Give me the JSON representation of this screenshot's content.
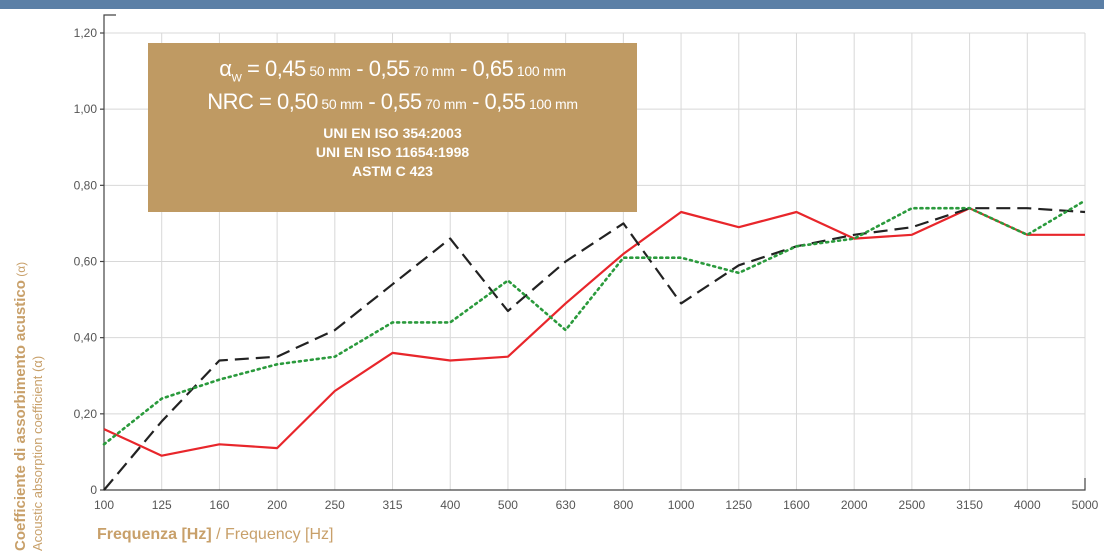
{
  "chart_data": {
    "type": "line",
    "categories": [
      "100",
      "125",
      "160",
      "200",
      "250",
      "315",
      "400",
      "500",
      "630",
      "800",
      "1000",
      "1250",
      "1600",
      "2000",
      "2500",
      "3150",
      "4000",
      "5000"
    ],
    "y_ticks": [
      "0",
      "0,20",
      "0,40",
      "0,60",
      "0,80",
      "1,00",
      "1,20"
    ],
    "y_tick_values": [
      0,
      0.2,
      0.4,
      0.6,
      0.8,
      1.0,
      1.2
    ],
    "ylim": [
      0,
      1.2
    ],
    "xlabel": {
      "italian": "Frequenza [Hz]",
      "separator": " / ",
      "english": "Frequency [Hz]"
    },
    "ylabel": {
      "italian": "Coefficiente di assorbimento acustico",
      "italian_symbol": " (α)",
      "english": "Acoustic absorption coefficient (α)"
    },
    "grid": true,
    "series": [
      {
        "values": [
          0.16,
          0.09,
          0.12,
          0.11,
          0.26,
          0.36,
          0.34,
          0.35,
          0.49,
          0.62,
          0.73,
          0.69,
          0.73,
          0.66,
          0.67,
          0.74,
          0.67,
          0.67
        ],
        "color": "#e8262b",
        "style": "solid"
      },
      {
        "values": [
          0,
          0.18,
          0.34,
          0.35,
          0.42,
          0.54,
          0.66,
          0.47,
          0.6,
          0.7,
          0.49,
          0.59,
          0.64,
          0.67,
          0.69,
          0.74,
          0.74,
          0.73
        ],
        "color": "#222222",
        "style": "dashed"
      },
      {
        "values": [
          0.12,
          0.24,
          0.29,
          0.33,
          0.35,
          0.44,
          0.44,
          0.55,
          0.42,
          0.61,
          0.61,
          0.57,
          0.64,
          0.66,
          0.74,
          0.74,
          0.67,
          0.76
        ],
        "color": "#2a9a3c",
        "style": "dotted"
      }
    ]
  },
  "info_box": {
    "alpha_symbol": "α",
    "alpha_sub": "W",
    "line1": [
      " = 0,45",
      " 50 mm",
      " - 0,55",
      " 70 mm",
      " - 0,65",
      " 100 mm"
    ],
    "line2": [
      "NRC = 0,50",
      " 50 mm",
      " - 0,55",
      " 70 mm",
      " - 0,55",
      " 100 mm"
    ],
    "standards": [
      "UNI EN ISO 354:2003",
      "UNI EN ISO 11654:1998",
      "ASTM C 423"
    ]
  },
  "colors": {
    "box": "#bf9a63",
    "label": "#c8a06a",
    "top_bar": "#5b7fa6"
  }
}
